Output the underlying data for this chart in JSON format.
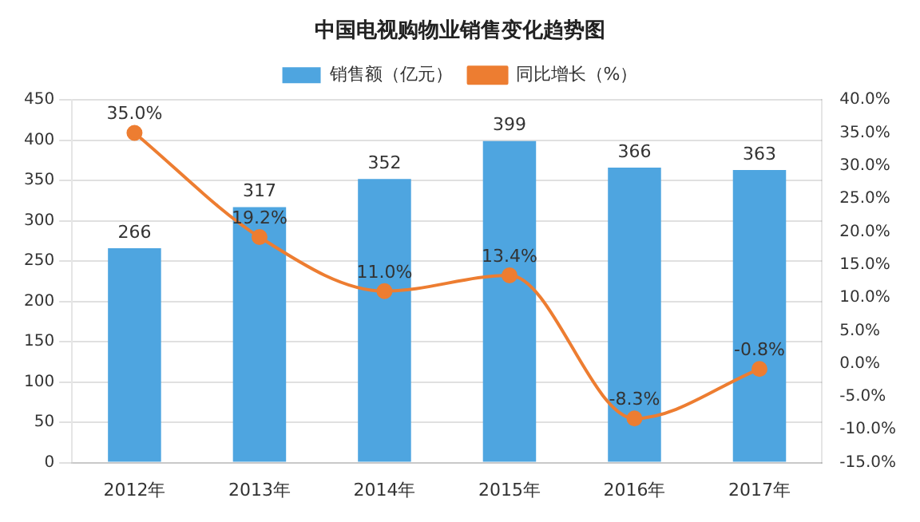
{
  "chart_data": {
    "type": "bar",
    "title": "中国电视购物业销售变化趋势图",
    "categories": [
      "2012年",
      "2013年",
      "2014年",
      "2015年",
      "2016年",
      "2017年"
    ],
    "series": [
      {
        "name": "销售额（亿元）",
        "color": "#4ea5e0",
        "values": [
          266,
          317,
          352,
          399,
          366,
          363
        ],
        "value_labels": [
          "266",
          "317",
          "352",
          "399",
          "366",
          "363"
        ]
      },
      {
        "name": "同比增长（%）",
        "type": "line",
        "axis": "y2",
        "color": "#ed7d31",
        "values": [
          35.0,
          19.2,
          11.0,
          13.4,
          -8.3,
          -0.8
        ],
        "value_labels": [
          "35.0%",
          "19.2%",
          "11.0%",
          "13.4%",
          "-8.3%",
          "-0.8%"
        ]
      }
    ],
    "ylim": [
      0,
      450
    ],
    "yticks": [
      0,
      50,
      100,
      150,
      200,
      250,
      300,
      350,
      400,
      450
    ],
    "y2lim": [
      -15,
      40
    ],
    "y2ticks": [
      {
        "value": 40,
        "label": "40.0%"
      },
      {
        "value": 35,
        "label": "35.0%"
      },
      {
        "value": 30,
        "label": "30.0%"
      },
      {
        "value": 25,
        "label": "25.0%"
      },
      {
        "value": 20,
        "label": "20.0%"
      },
      {
        "value": 15,
        "label": "15.0%"
      },
      {
        "value": 10,
        "label": "10.0%"
      },
      {
        "value": 5,
        "label": "5.0%"
      },
      {
        "value": 0,
        "label": "0.0%"
      },
      {
        "value": -5,
        "label": "-5.0%"
      },
      {
        "value": -10,
        "label": "-10.0%"
      },
      {
        "value": -15,
        "label": "-15.0%"
      }
    ],
    "grid": "y",
    "legend": "top",
    "marker": "circle",
    "line_style": "solid"
  }
}
